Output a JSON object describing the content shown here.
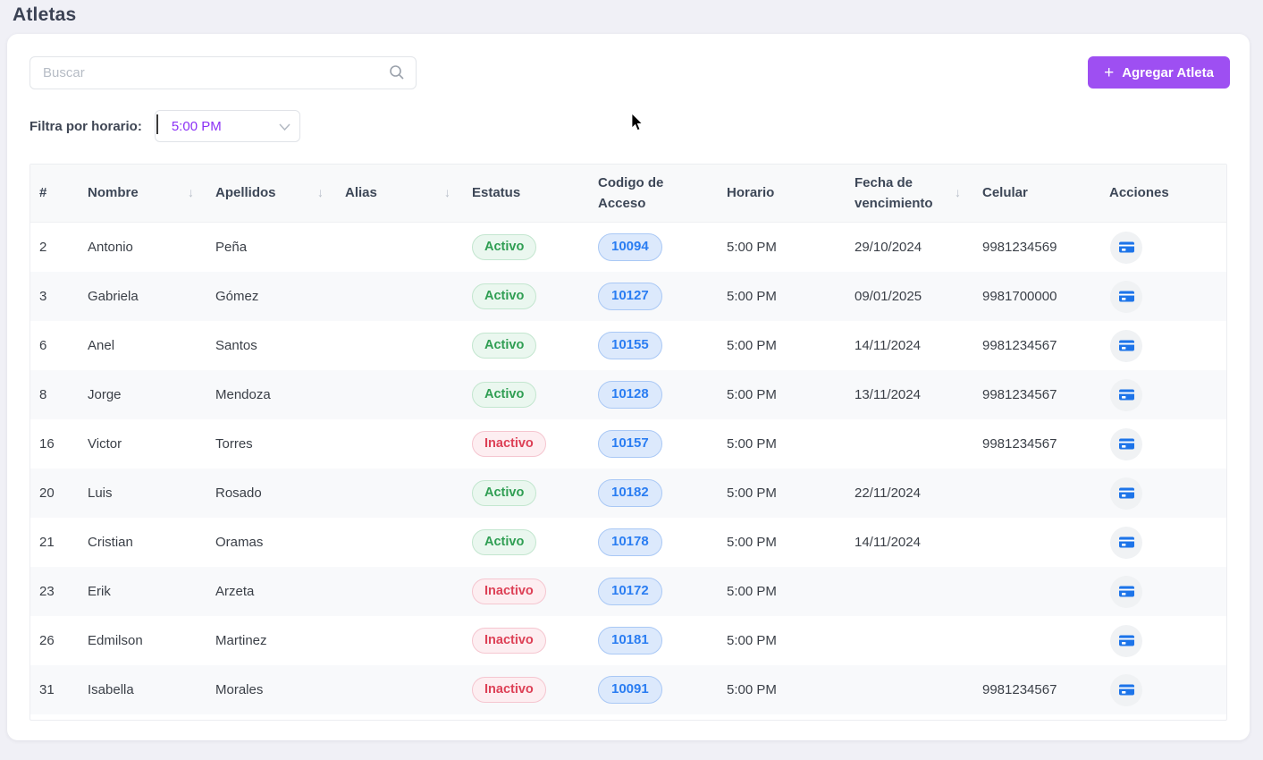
{
  "page": {
    "title": "Atletas"
  },
  "toolbar": {
    "search": {
      "placeholder": "Buscar",
      "value": ""
    },
    "add_button": {
      "icon": "+",
      "label": "Agregar Atleta"
    }
  },
  "filter": {
    "label": "Filtra por horario:",
    "selected": "5:00 PM"
  },
  "colors": {
    "accent_purple": "#9e4ff2",
    "access_code_blue": "#2a7df2",
    "status_active_green": "#2f9e53",
    "status_inactive_red": "#dd4056",
    "action_icon_blue": "#1d74e9"
  },
  "table": {
    "sort_icon": "↓",
    "columns": [
      {
        "key": "num",
        "label": "#",
        "sortable": false
      },
      {
        "key": "nombre",
        "label": "Nombre",
        "sortable": true
      },
      {
        "key": "apellidos",
        "label": "Apellidos",
        "sortable": true
      },
      {
        "key": "alias",
        "label": "Alias",
        "sortable": true
      },
      {
        "key": "estatus",
        "label": "Estatus",
        "sortable": false
      },
      {
        "key": "codigo",
        "label": "Codigo de Acceso",
        "sortable": false
      },
      {
        "key": "horario",
        "label": "Horario",
        "sortable": false
      },
      {
        "key": "vencimiento",
        "label": "Fecha de vencimiento",
        "sortable": true
      },
      {
        "key": "celular",
        "label": "Celular",
        "sortable": false
      },
      {
        "key": "acciones",
        "label": "Acciones",
        "sortable": false
      }
    ],
    "rows": [
      {
        "num": "2",
        "nombre": "Antonio",
        "apellidos": "Peña",
        "alias": "",
        "estatus": "Activo",
        "codigo": "10094",
        "horario": "5:00 PM",
        "vencimiento": "29/10/2024",
        "celular": "9981234569"
      },
      {
        "num": "3",
        "nombre": "Gabriela",
        "apellidos": "Gómez",
        "alias": "",
        "estatus": "Activo",
        "codigo": "10127",
        "horario": "5:00 PM",
        "vencimiento": "09/01/2025",
        "celular": "9981700000"
      },
      {
        "num": "6",
        "nombre": "Anel",
        "apellidos": "Santos",
        "alias": "",
        "estatus": "Activo",
        "codigo": "10155",
        "horario": "5:00 PM",
        "vencimiento": "14/11/2024",
        "celular": "9981234567"
      },
      {
        "num": "8",
        "nombre": "Jorge",
        "apellidos": "Mendoza",
        "alias": "",
        "estatus": "Activo",
        "codigo": "10128",
        "horario": "5:00 PM",
        "vencimiento": "13/11/2024",
        "celular": "9981234567"
      },
      {
        "num": "16",
        "nombre": "Victor",
        "apellidos": "Torres",
        "alias": "",
        "estatus": "Inactivo",
        "codigo": "10157",
        "horario": "5:00 PM",
        "vencimiento": "",
        "celular": "9981234567"
      },
      {
        "num": "20",
        "nombre": "Luis",
        "apellidos": "Rosado",
        "alias": "",
        "estatus": "Activo",
        "codigo": "10182",
        "horario": "5:00 PM",
        "vencimiento": "22/11/2024",
        "celular": ""
      },
      {
        "num": "21",
        "nombre": "Cristian",
        "apellidos": "Oramas",
        "alias": "",
        "estatus": "Activo",
        "codigo": "10178",
        "horario": "5:00 PM",
        "vencimiento": "14/11/2024",
        "celular": ""
      },
      {
        "num": "23",
        "nombre": "Erik",
        "apellidos": "Arzeta",
        "alias": "",
        "estatus": "Inactivo",
        "codigo": "10172",
        "horario": "5:00 PM",
        "vencimiento": "",
        "celular": ""
      },
      {
        "num": "26",
        "nombre": "Edmilson",
        "apellidos": "Martinez",
        "alias": "",
        "estatus": "Inactivo",
        "codigo": "10181",
        "horario": "5:00 PM",
        "vencimiento": "",
        "celular": ""
      },
      {
        "num": "31",
        "nombre": "Isabella",
        "apellidos": "Morales",
        "alias": "",
        "estatus": "Inactivo",
        "codigo": "10091",
        "horario": "5:00 PM",
        "vencimiento": "",
        "celular": "9981234567"
      }
    ]
  }
}
